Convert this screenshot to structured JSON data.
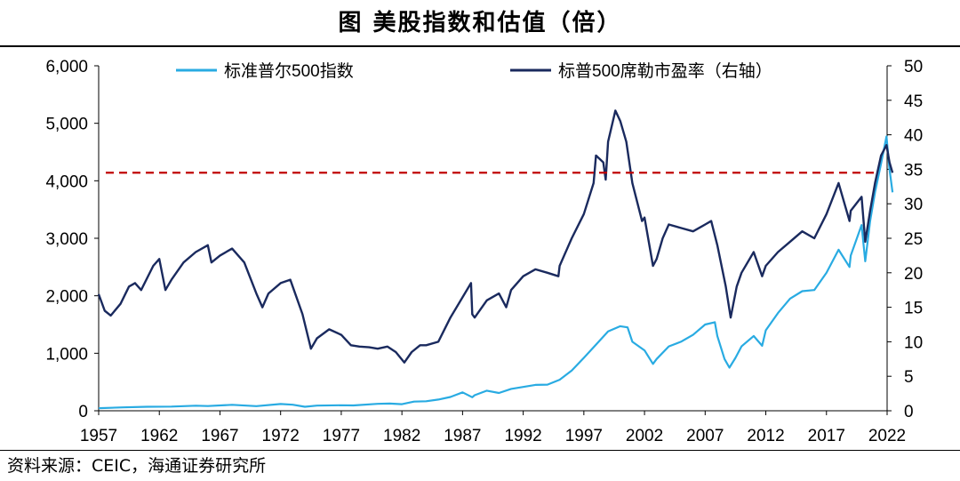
{
  "title": "图  美股指数和估值（倍）",
  "source": "资料来源：CEIC，海通证券研究所",
  "colors": {
    "sp500": "#29abe2",
    "pe": "#1a2a5e",
    "reference": "#c00000",
    "axis": "#000000"
  },
  "chart_data": {
    "type": "line",
    "title": "美股指数和估值（倍）",
    "x_tick_labels": [
      "1957",
      "1962",
      "1967",
      "1972",
      "1977",
      "1982",
      "1987",
      "1992",
      "1997",
      "2002",
      "2007",
      "2012",
      "2017",
      "2022"
    ],
    "xlim": [
      1957,
      2022
    ],
    "y_left": {
      "lim": [
        0,
        6000
      ],
      "ticks": [
        0,
        1000,
        2000,
        3000,
        4000,
        5000,
        6000
      ],
      "tick_labels": [
        "0",
        "1,000",
        "2,000",
        "3,000",
        "4,000",
        "5,000",
        "6,000"
      ]
    },
    "y_right": {
      "lim": [
        0,
        50
      ],
      "ticks": [
        0,
        5,
        10,
        15,
        20,
        25,
        30,
        35,
        40,
        45,
        50
      ],
      "tick_labels": [
        "0",
        "5",
        "10",
        "15",
        "20",
        "25",
        "30",
        "35",
        "40",
        "45",
        "50"
      ]
    },
    "reference_line": {
      "axis": "right",
      "value": 34.5,
      "style": "dashed"
    },
    "series": [
      {
        "name": "标准普尔500指数",
        "axis": "left",
        "points": [
          [
            1957,
            45
          ],
          [
            1959,
            58
          ],
          [
            1961,
            70
          ],
          [
            1963,
            72
          ],
          [
            1965,
            88
          ],
          [
            1966,
            82
          ],
          [
            1968,
            103
          ],
          [
            1970,
            80
          ],
          [
            1972,
            118
          ],
          [
            1973,
            105
          ],
          [
            1974,
            70
          ],
          [
            1975,
            90
          ],
          [
            1977,
            96
          ],
          [
            1978,
            93
          ],
          [
            1980,
            120
          ],
          [
            1981,
            125
          ],
          [
            1982,
            115
          ],
          [
            1983,
            160
          ],
          [
            1984,
            165
          ],
          [
            1985,
            195
          ],
          [
            1986,
            240
          ],
          [
            1987,
            320
          ],
          [
            1987.8,
            235
          ],
          [
            1988,
            270
          ],
          [
            1989,
            350
          ],
          [
            1990,
            310
          ],
          [
            1991,
            380
          ],
          [
            1993,
            450
          ],
          [
            1994,
            455
          ],
          [
            1995,
            540
          ],
          [
            1996,
            700
          ],
          [
            1997,
            920
          ],
          [
            1998,
            1150
          ],
          [
            1999,
            1380
          ],
          [
            2000,
            1470
          ],
          [
            2000.6,
            1450
          ],
          [
            2001,
            1200
          ],
          [
            2002,
            1050
          ],
          [
            2002.7,
            815
          ],
          [
            2003,
            900
          ],
          [
            2004,
            1120
          ],
          [
            2005,
            1200
          ],
          [
            2006,
            1320
          ],
          [
            2007,
            1500
          ],
          [
            2007.8,
            1540
          ],
          [
            2008,
            1300
          ],
          [
            2008.6,
            900
          ],
          [
            2009,
            750
          ],
          [
            2009.5,
            920
          ],
          [
            2010,
            1120
          ],
          [
            2011,
            1300
          ],
          [
            2011.7,
            1130
          ],
          [
            2012,
            1400
          ],
          [
            2013,
            1700
          ],
          [
            2014,
            1950
          ],
          [
            2015,
            2080
          ],
          [
            2016,
            2100
          ],
          [
            2017,
            2400
          ],
          [
            2018,
            2800
          ],
          [
            2018.9,
            2500
          ],
          [
            2019,
            2700
          ],
          [
            2019.9,
            3230
          ],
          [
            2020.2,
            2600
          ],
          [
            2020.6,
            3300
          ],
          [
            2021,
            3800
          ],
          [
            2021.5,
            4300
          ],
          [
            2021.95,
            4770
          ],
          [
            2022.2,
            4200
          ],
          [
            2022.45,
            3800
          ]
        ]
      },
      {
        "name": "标普500席勒市盈率（右轴）",
        "axis": "right",
        "points": [
          [
            1957,
            16.9
          ],
          [
            1957.5,
            14.5
          ],
          [
            1958,
            13.8
          ],
          [
            1958.8,
            15.5
          ],
          [
            1959.5,
            18
          ],
          [
            1960,
            18.5
          ],
          [
            1960.5,
            17.5
          ],
          [
            1961.5,
            21
          ],
          [
            1962,
            22
          ],
          [
            1962.5,
            17.5
          ],
          [
            1963,
            19
          ],
          [
            1964,
            21.5
          ],
          [
            1965,
            23
          ],
          [
            1966,
            24
          ],
          [
            1966.3,
            21.5
          ],
          [
            1967,
            22.5
          ],
          [
            1968,
            23.5
          ],
          [
            1969,
            21.5
          ],
          [
            1970,
            17
          ],
          [
            1970.5,
            15
          ],
          [
            1971,
            17
          ],
          [
            1972,
            18.5
          ],
          [
            1972.8,
            19
          ],
          [
            1973,
            18
          ],
          [
            1973.8,
            14
          ],
          [
            1974.5,
            9
          ],
          [
            1975,
            10.5
          ],
          [
            1976,
            11.8
          ],
          [
            1977,
            11
          ],
          [
            1977.8,
            9.5
          ],
          [
            1978.5,
            9.3
          ],
          [
            1979.3,
            9.2
          ],
          [
            1980,
            9
          ],
          [
            1980.8,
            9.3
          ],
          [
            1981.5,
            8.5
          ],
          [
            1982.2,
            7
          ],
          [
            1982.8,
            8.5
          ],
          [
            1983.5,
            9.5
          ],
          [
            1984,
            9.5
          ],
          [
            1985,
            10
          ],
          [
            1986,
            13.5
          ],
          [
            1987.7,
            18.5
          ],
          [
            1987.8,
            14
          ],
          [
            1988,
            13.5
          ],
          [
            1989,
            16
          ],
          [
            1990,
            17
          ],
          [
            1990.6,
            15
          ],
          [
            1991,
            17.5
          ],
          [
            1992,
            19.5
          ],
          [
            1993,
            20.5
          ],
          [
            1994,
            20
          ],
          [
            1994.9,
            19.5
          ],
          [
            1995,
            21
          ],
          [
            1996,
            25
          ],
          [
            1997,
            28.5
          ],
          [
            1997.8,
            33
          ],
          [
            1998,
            37
          ],
          [
            1998.6,
            36
          ],
          [
            1998.8,
            33.5
          ],
          [
            1999,
            39
          ],
          [
            1999.6,
            43.5
          ],
          [
            2000,
            42
          ],
          [
            2000.5,
            39
          ],
          [
            2001,
            33
          ],
          [
            2001.8,
            27.5
          ],
          [
            2002,
            28
          ],
          [
            2002.7,
            21
          ],
          [
            2003,
            22
          ],
          [
            2003.5,
            25
          ],
          [
            2004,
            27
          ],
          [
            2005,
            26.5
          ],
          [
            2006,
            26
          ],
          [
            2007,
            27
          ],
          [
            2007.5,
            27.5
          ],
          [
            2008,
            24
          ],
          [
            2008.7,
            18
          ],
          [
            2009.1,
            13.5
          ],
          [
            2009.6,
            18
          ],
          [
            2010,
            20
          ],
          [
            2011,
            23
          ],
          [
            2011.7,
            19.5
          ],
          [
            2012,
            21
          ],
          [
            2013,
            23
          ],
          [
            2014,
            24.5
          ],
          [
            2015,
            26
          ],
          [
            2016,
            25
          ],
          [
            2017,
            28.5
          ],
          [
            2018,
            33
          ],
          [
            2018.9,
            27.5
          ],
          [
            2019,
            29
          ],
          [
            2019.9,
            31
          ],
          [
            2020.2,
            24.5
          ],
          [
            2020.6,
            29
          ],
          [
            2021,
            33
          ],
          [
            2021.5,
            37
          ],
          [
            2021.95,
            38.5
          ],
          [
            2022.2,
            36
          ],
          [
            2022.45,
            34.5
          ]
        ]
      }
    ]
  }
}
